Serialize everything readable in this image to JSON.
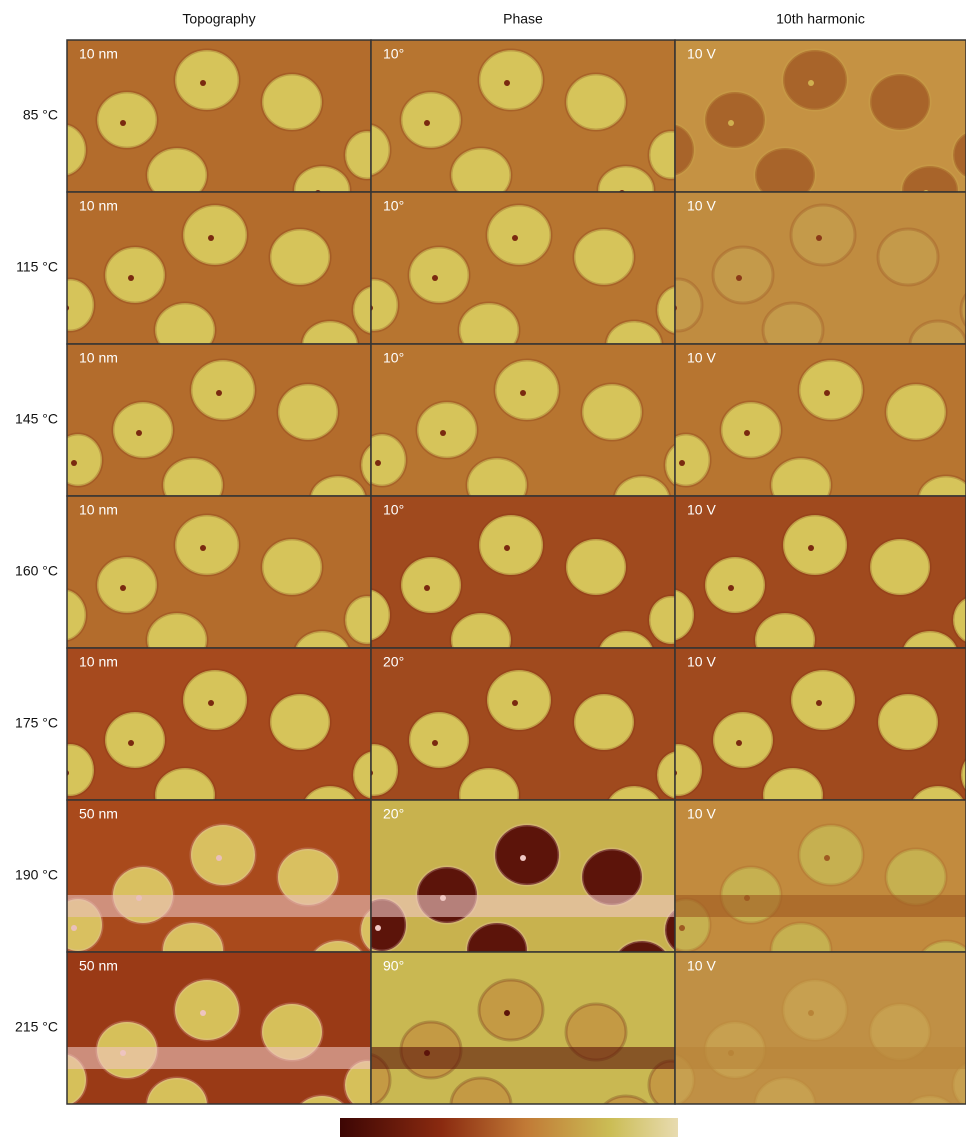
{
  "columns": [
    "Topography",
    "Phase",
    "10th harmonic"
  ],
  "rows": [
    {
      "label": "85 °C",
      "scales": [
        "10 nm",
        "10°",
        "10 V"
      ]
    },
    {
      "label": "115 °C",
      "scales": [
        "10 nm",
        "10°",
        "10 V"
      ]
    },
    {
      "label": "145 °C",
      "scales": [
        "10 nm",
        "10°",
        "10 V"
      ]
    },
    {
      "label": "160 °C",
      "scales": [
        "10 nm",
        "10°",
        "10 V"
      ]
    },
    {
      "label": "175 °C",
      "scales": [
        "10 nm",
        "20°",
        "10 V"
      ]
    },
    {
      "label": "190 °C",
      "scales": [
        "50 nm",
        "20°",
        "10 V"
      ]
    },
    {
      "label": "215 °C",
      "scales": [
        "50 nm",
        "90°",
        "10 V"
      ]
    }
  ]
}
